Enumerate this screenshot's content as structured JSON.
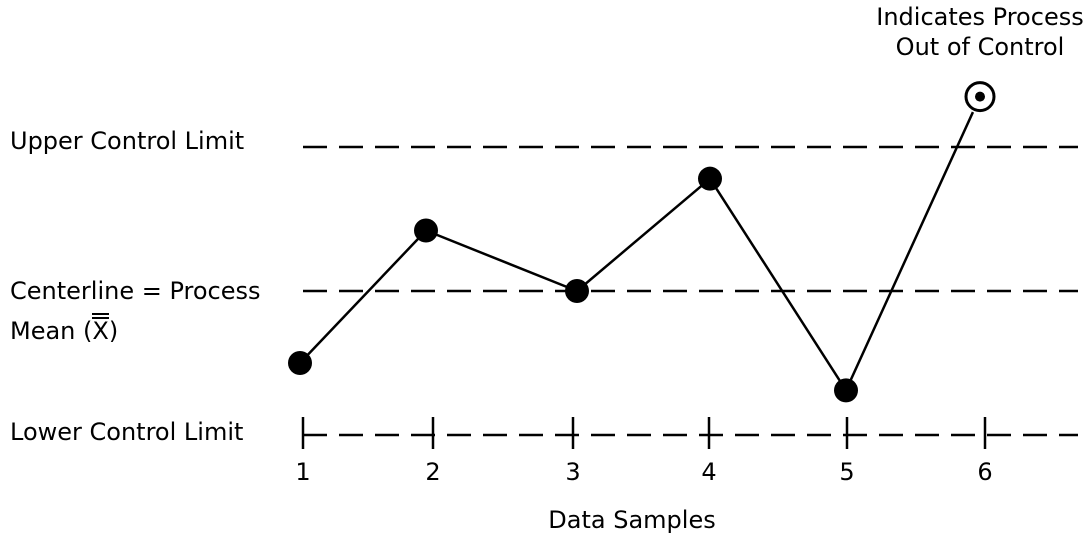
{
  "chart_data": {
    "type": "line",
    "x": [
      1,
      2,
      3,
      4,
      5,
      6
    ],
    "values": [
      -0.5,
      0.42,
      0.0,
      0.78,
      -0.69,
      1.35
    ],
    "out_of_control_index": 5,
    "reference_lines": {
      "upper_control_limit": 1.0,
      "centerline": 0.0,
      "lower_control_limit": -1.0
    },
    "xlabel": "Data Samples",
    "tick_labels": [
      "1",
      "2",
      "3",
      "4",
      "5",
      "6"
    ],
    "ylim": [
      -1.0,
      1.4
    ]
  },
  "labels": {
    "ucl": "Upper Control Limit",
    "centerline_line1": "Centerline = Process",
    "centerline_line2_prefix": "Mean (",
    "centerline_symbol": "X",
    "centerline_line2_suffix": ")",
    "lcl": "Lower Control Limit",
    "annotation_line1": "Indicates Process",
    "annotation_line2": "Out of Control"
  }
}
